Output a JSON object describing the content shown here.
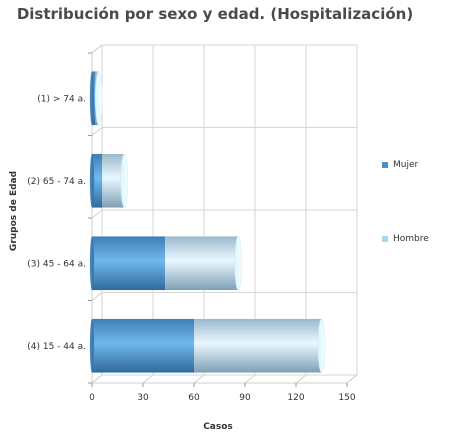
{
  "chart_data": {
    "type": "bar",
    "orientation": "horizontal",
    "stacked": true,
    "style": "3d-cylinder",
    "title": "Distribución por sexo y edad. (Hospitalización)",
    "xlabel": "Casos",
    "ylabel": "Grupos de Edad",
    "categories": [
      "(1) > 74 a.",
      "(2) 65 - 74 a.",
      "(3) 45 - 64 a.",
      "(4) 15 - 44 a."
    ],
    "series": [
      {
        "name": "Mujer",
        "values": [
          2,
          6,
          43,
          60
        ],
        "color": "#4a90c8"
      },
      {
        "name": "Hombre",
        "values": [
          2,
          13,
          43,
          75
        ],
        "color": "#a8d6f0"
      }
    ],
    "xlim": [
      0,
      150
    ],
    "xticks": [
      0,
      30,
      60,
      90,
      120,
      150
    ],
    "grid": true,
    "legend_position": "right"
  }
}
